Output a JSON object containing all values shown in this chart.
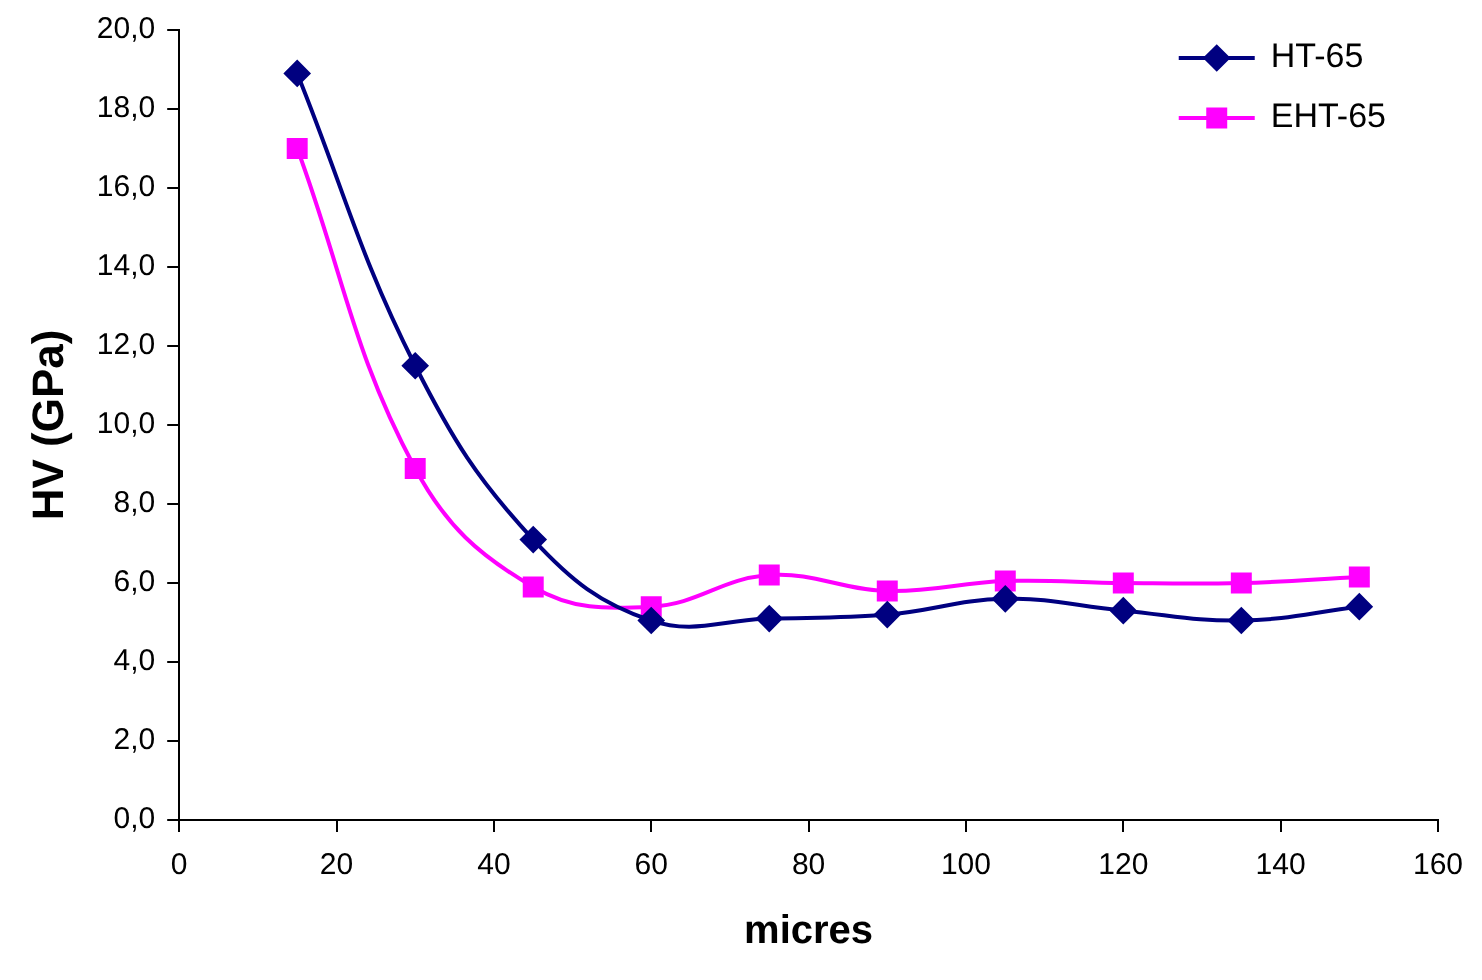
{
  "chart_data": {
    "type": "line",
    "xlabel": "micres",
    "ylabel": "HV (GPa)",
    "x": [
      15,
      30,
      45,
      60,
      75,
      90,
      105,
      120,
      135,
      150
    ],
    "series": [
      {
        "name": "HT-65",
        "color": "#000080",
        "marker": "diamond",
        "values": [
          18.9,
          11.5,
          7.1,
          5.05,
          5.1,
          5.2,
          5.6,
          5.3,
          5.05,
          5.4
        ]
      },
      {
        "name": "EHT-65",
        "color": "#ff00ff",
        "marker": "square",
        "values": [
          17.0,
          8.9,
          5.9,
          5.4,
          6.2,
          5.8,
          6.05,
          6.0,
          6.0,
          6.15
        ]
      }
    ],
    "xlim": [
      0,
      160
    ],
    "xticks": [
      0,
      20,
      40,
      60,
      80,
      100,
      120,
      140,
      160
    ],
    "ylim": [
      0,
      20
    ],
    "yticks": [
      {
        "value": 0,
        "label": "0,0"
      },
      {
        "value": 2,
        "label": "2,0"
      },
      {
        "value": 4,
        "label": "4,0"
      },
      {
        "value": 6,
        "label": "6,0"
      },
      {
        "value": 8,
        "label": "8,0"
      },
      {
        "value": 10,
        "label": "10,0"
      },
      {
        "value": 12,
        "label": "12,0"
      },
      {
        "value": 14,
        "label": "14,0"
      },
      {
        "value": 16,
        "label": "16,0"
      },
      {
        "value": 18,
        "label": "18,0"
      },
      {
        "value": 20,
        "label": "20,0"
      }
    ],
    "grid": false,
    "legend": "top right",
    "line_style": "solid"
  }
}
